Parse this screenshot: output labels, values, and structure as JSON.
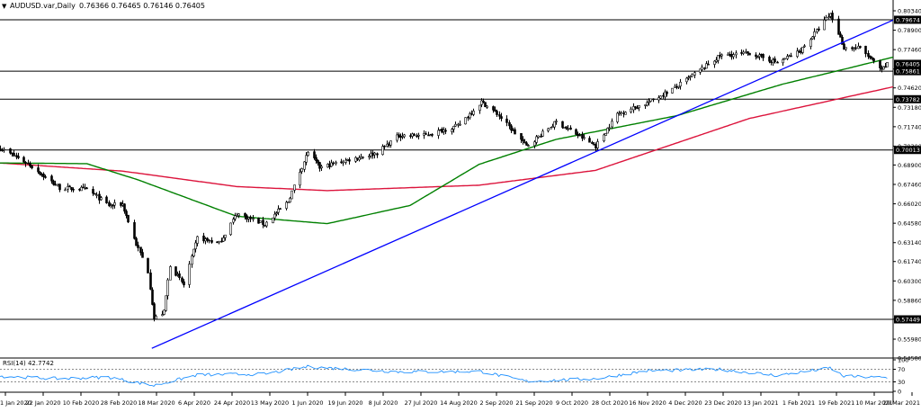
{
  "header": {
    "arrow_glyph": "▼",
    "symbol": "AUDUSD.var,Daily",
    "ohlc": "0.76366 0.76465 0.76146 0.76405"
  },
  "rsi": {
    "label": "RSI(14) 42.7742",
    "levels": [
      100,
      70,
      30,
      0
    ],
    "ticks": [
      "100",
      "70",
      "30",
      "0"
    ]
  },
  "colors": {
    "background": "#ffffff",
    "candles": "#000000",
    "ma_green": "#008000",
    "ma_red": "#dc143c",
    "trendline": "#0000ff",
    "rsi_line": "#1e90ff",
    "tag_bg": "#000000",
    "tag_text": "#ffffff"
  },
  "chart_data": {
    "type": "candlestick",
    "title": "AUDUSD.var,Daily",
    "ylim": [
      0.5458,
      0.8034
    ],
    "price_ticks": [
      "0.80340",
      "0.78900",
      "0.77460",
      "0.76020",
      "0.74620",
      "0.73180",
      "0.71740",
      "0.70300",
      "0.68900",
      "0.67460",
      "0.66020",
      "0.64580",
      "0.63140",
      "0.61740",
      "0.60300",
      "0.58860",
      "0.57460",
      "0.55980",
      "0.54580"
    ],
    "x_ticks": [
      "1 Jan 2020",
      "22 Jan 2020",
      "10 Feb 2020",
      "28 Feb 2020",
      "18 Mar 2020",
      "6 Apr 2020",
      "24 Apr 2020",
      "13 May 2020",
      "1 Jun 2020",
      "19 Jun 2020",
      "8 Jul 2020",
      "27 Jul 2020",
      "14 Aug 2020",
      "2 Sep 2020",
      "21 Sep 2020",
      "9 Oct 2020",
      "28 Oct 2020",
      "16 Nov 2020",
      "4 Dec 2020",
      "23 Dec 2020",
      "13 Jan 2021",
      "1 Feb 2021",
      "19 Feb 2021",
      "10 Mar 2021",
      "29 Mar 2021"
    ],
    "horizontal_levels": [
      {
        "price": 0.79674,
        "label": "0.79674"
      },
      {
        "price": 0.75861,
        "label": "0.75861"
      },
      {
        "price": 0.73782,
        "label": "0.73782"
      },
      {
        "price": 0.70013,
        "label": "0.70013"
      },
      {
        "price": 0.57449,
        "label": "0.57449"
      }
    ],
    "current_price": {
      "price": 0.76405,
      "label": "0.76405"
    },
    "close_anchors": [
      {
        "date": "2020-01-01",
        "close": 0.7015
      },
      {
        "date": "2020-01-15",
        "close": 0.69
      },
      {
        "date": "2020-01-31",
        "close": 0.672
      },
      {
        "date": "2020-02-14",
        "close": 0.671
      },
      {
        "date": "2020-02-25",
        "close": 0.659
      },
      {
        "date": "2020-03-03",
        "close": 0.66
      },
      {
        "date": "2020-03-10",
        "close": 0.63
      },
      {
        "date": "2020-03-16",
        "close": 0.61
      },
      {
        "date": "2020-03-19",
        "close": 0.575
      },
      {
        "date": "2020-03-24",
        "close": 0.58
      },
      {
        "date": "2020-03-27",
        "close": 0.615
      },
      {
        "date": "2020-04-03",
        "close": 0.6
      },
      {
        "date": "2020-04-10",
        "close": 0.635
      },
      {
        "date": "2020-04-21",
        "close": 0.631
      },
      {
        "date": "2020-04-30",
        "close": 0.653
      },
      {
        "date": "2020-05-14",
        "close": 0.645
      },
      {
        "date": "2020-05-26",
        "close": 0.662
      },
      {
        "date": "2020-06-05",
        "close": 0.699
      },
      {
        "date": "2020-06-11",
        "close": 0.687
      },
      {
        "date": "2020-06-23",
        "close": 0.692
      },
      {
        "date": "2020-07-10",
        "close": 0.698
      },
      {
        "date": "2020-07-21",
        "close": 0.711
      },
      {
        "date": "2020-08-03",
        "close": 0.711
      },
      {
        "date": "2020-08-20",
        "close": 0.718
      },
      {
        "date": "2020-09-01",
        "close": 0.736
      },
      {
        "date": "2020-09-09",
        "close": 0.727
      },
      {
        "date": "2020-09-24",
        "close": 0.703
      },
      {
        "date": "2020-10-09",
        "close": 0.721
      },
      {
        "date": "2020-10-29",
        "close": 0.703
      },
      {
        "date": "2020-11-09",
        "close": 0.727
      },
      {
        "date": "2020-11-24",
        "close": 0.735
      },
      {
        "date": "2020-12-09",
        "close": 0.747
      },
      {
        "date": "2020-12-31",
        "close": 0.77
      },
      {
        "date": "2021-01-15",
        "close": 0.772
      },
      {
        "date": "2021-01-29",
        "close": 0.765
      },
      {
        "date": "2021-02-10",
        "close": 0.774
      },
      {
        "date": "2021-02-25",
        "close": 0.801
      },
      {
        "date": "2021-03-04",
        "close": 0.776
      },
      {
        "date": "2021-03-12",
        "close": 0.776
      },
      {
        "date": "2021-03-23",
        "close": 0.759
      },
      {
        "date": "2021-03-26",
        "close": 0.764
      }
    ],
    "ma_green_anchors": [
      {
        "date": "2020-01-01",
        "value": 0.6905
      },
      {
        "date": "2020-02-14",
        "value": 0.69
      },
      {
        "date": "2020-03-11",
        "value": 0.678
      },
      {
        "date": "2020-04-30",
        "value": 0.651
      },
      {
        "date": "2020-06-15",
        "value": 0.6455
      },
      {
        "date": "2020-07-27",
        "value": 0.659
      },
      {
        "date": "2020-08-31",
        "value": 0.6895
      },
      {
        "date": "2020-10-09",
        "value": 0.708
      },
      {
        "date": "2020-12-09",
        "value": 0.7255
      },
      {
        "date": "2021-02-01",
        "value": 0.749
      },
      {
        "date": "2021-03-04",
        "value": 0.76
      },
      {
        "date": "2021-03-29",
        "value": 0.769
      }
    ],
    "ma_red_anchors": [
      {
        "date": "2020-01-01",
        "value": 0.6905
      },
      {
        "date": "2020-03-03",
        "value": 0.6845
      },
      {
        "date": "2020-04-30",
        "value": 0.673
      },
      {
        "date": "2020-06-15",
        "value": 0.67
      },
      {
        "date": "2020-08-31",
        "value": 0.674
      },
      {
        "date": "2020-10-29",
        "value": 0.685
      },
      {
        "date": "2021-01-15",
        "value": 0.7235
      },
      {
        "date": "2021-03-29",
        "value": 0.747
      }
    ],
    "trendline": {
      "from": {
        "date": "2020-03-18",
        "price": 0.553
      },
      "to": {
        "date": "2021-03-29",
        "price": 0.7965
      }
    },
    "rsi_anchors": [
      {
        "date": "2020-01-01",
        "value": 48
      },
      {
        "date": "2020-01-31",
        "value": 40
      },
      {
        "date": "2020-02-25",
        "value": 45
      },
      {
        "date": "2020-03-19",
        "value": 18
      },
      {
        "date": "2020-04-10",
        "value": 52
      },
      {
        "date": "2020-05-14",
        "value": 55
      },
      {
        "date": "2020-06-05",
        "value": 78
      },
      {
        "date": "2020-07-21",
        "value": 62
      },
      {
        "date": "2020-09-01",
        "value": 63
      },
      {
        "date": "2020-09-24",
        "value": 32
      },
      {
        "date": "2020-10-29",
        "value": 40
      },
      {
        "date": "2020-11-24",
        "value": 65
      },
      {
        "date": "2020-12-31",
        "value": 70
      },
      {
        "date": "2021-01-29",
        "value": 50
      },
      {
        "date": "2021-02-25",
        "value": 74
      },
      {
        "date": "2021-03-04",
        "value": 48
      },
      {
        "date": "2021-03-26",
        "value": 43
      }
    ]
  }
}
